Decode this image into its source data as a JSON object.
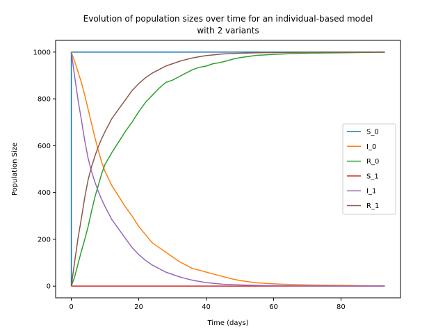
{
  "chart_data": {
    "type": "line",
    "title_line1": "Evolution of population sizes over time for an individual-based model",
    "title_line2": "with 2 variants",
    "xlabel": "Time (days)",
    "ylabel": "Population Size",
    "xlim": [
      -4.65,
      97.65
    ],
    "ylim": [
      -50,
      1050
    ],
    "xticks": [
      0,
      20,
      40,
      60,
      80
    ],
    "yticks": [
      0,
      200,
      400,
      600,
      800,
      1000
    ],
    "grid": false,
    "legend_position": "center-right",
    "series": [
      {
        "name": "S_0",
        "color": "#1f77b4",
        "x": [
          0,
          0,
          93
        ],
        "y": [
          0,
          1000,
          1000
        ]
      },
      {
        "name": "I_0",
        "color": "#ff7f0e",
        "x": [
          0,
          1,
          2,
          3,
          4,
          5,
          6,
          7,
          8,
          9,
          10,
          12,
          14,
          16,
          18,
          20,
          22,
          24,
          26,
          28,
          30,
          32,
          34,
          36,
          38,
          40,
          42,
          44,
          46,
          48,
          50,
          55,
          60,
          65,
          70,
          75,
          80,
          85,
          90,
          93
        ],
        "y": [
          1000,
          960,
          915,
          870,
          815,
          755,
          695,
          635,
          580,
          530,
          490,
          430,
          385,
          340,
          300,
          255,
          220,
          185,
          165,
          145,
          125,
          105,
          90,
          75,
          68,
          60,
          52,
          45,
          37,
          30,
          24,
          14,
          10,
          7,
          5,
          4,
          3,
          2,
          1,
          1
        ]
      },
      {
        "name": "R_0",
        "color": "#2ca02c",
        "x": [
          0,
          1,
          2,
          3,
          4,
          5,
          6,
          7,
          8,
          9,
          10,
          12,
          14,
          16,
          18,
          20,
          22,
          24,
          26,
          28,
          30,
          32,
          34,
          36,
          38,
          40,
          42,
          44,
          46,
          48,
          50,
          55,
          60,
          65,
          70,
          75,
          80,
          85,
          90,
          93
        ],
        "y": [
          0,
          40,
          95,
          150,
          200,
          255,
          320,
          380,
          430,
          480,
          520,
          570,
          615,
          660,
          700,
          745,
          785,
          815,
          845,
          870,
          880,
          895,
          910,
          925,
          935,
          940,
          950,
          955,
          962,
          970,
          976,
          986,
          990,
          993,
          995,
          996,
          997,
          998,
          999,
          999
        ]
      },
      {
        "name": "S_1",
        "color": "#d62728",
        "x": [
          0,
          93
        ],
        "y": [
          0,
          0
        ]
      },
      {
        "name": "I_1",
        "color": "#9467bd",
        "x": [
          0,
          1,
          2,
          3,
          4,
          5,
          6,
          7,
          8,
          9,
          10,
          12,
          14,
          16,
          18,
          20,
          22,
          24,
          26,
          28,
          30,
          32,
          34,
          36,
          38,
          40,
          45,
          50,
          55,
          60,
          70,
          80,
          93
        ],
        "y": [
          1000,
          895,
          795,
          710,
          620,
          545,
          490,
          445,
          405,
          370,
          340,
          285,
          245,
          205,
          165,
          135,
          110,
          90,
          75,
          60,
          50,
          40,
          32,
          25,
          20,
          15,
          8,
          5,
          3,
          2,
          1,
          0,
          0
        ]
      },
      {
        "name": "R_1",
        "color": "#8c564b",
        "x": [
          0,
          1,
          2,
          3,
          4,
          5,
          6,
          7,
          8,
          9,
          10,
          12,
          14,
          16,
          18,
          20,
          22,
          24,
          26,
          28,
          30,
          32,
          34,
          36,
          38,
          40,
          45,
          50,
          55,
          60,
          70,
          80,
          93
        ],
        "y": [
          0,
          105,
          205,
          290,
          380,
          455,
          510,
          555,
          595,
          630,
          660,
          715,
          755,
          795,
          835,
          865,
          890,
          910,
          925,
          940,
          950,
          960,
          968,
          975,
          980,
          985,
          992,
          995,
          997,
          998,
          999,
          1000,
          1000
        ]
      }
    ]
  }
}
